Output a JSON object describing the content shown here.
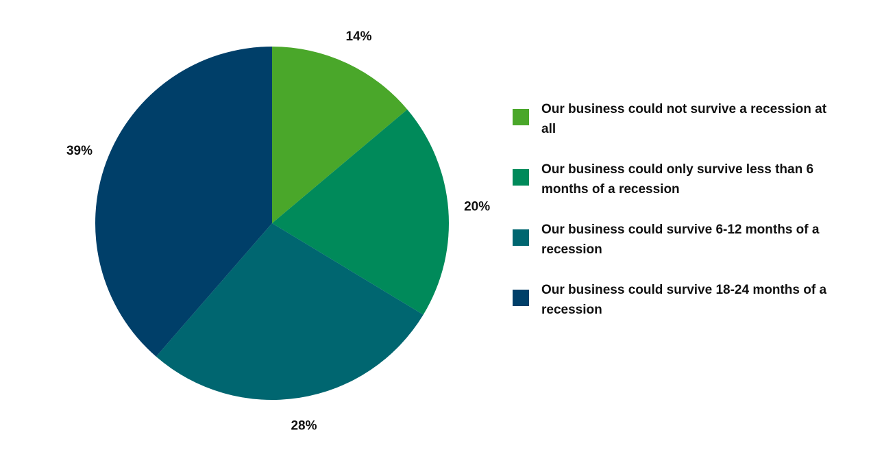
{
  "chart_data": {
    "type": "pie",
    "categories": [
      "Our business could not survive a recession at all",
      "Our business could only survive less than 6 months of a recession",
      "Our business could survive 6-12 months of a recession",
      "Our business could survive 18-24 months of a recession"
    ],
    "values": [
      14,
      20,
      28,
      39
    ],
    "value_labels": [
      "14%",
      "20%",
      "28%",
      "39%"
    ],
    "colors": [
      "#4aa72a",
      "#008a5a",
      "#006670",
      "#003f69"
    ],
    "legend": "right"
  }
}
